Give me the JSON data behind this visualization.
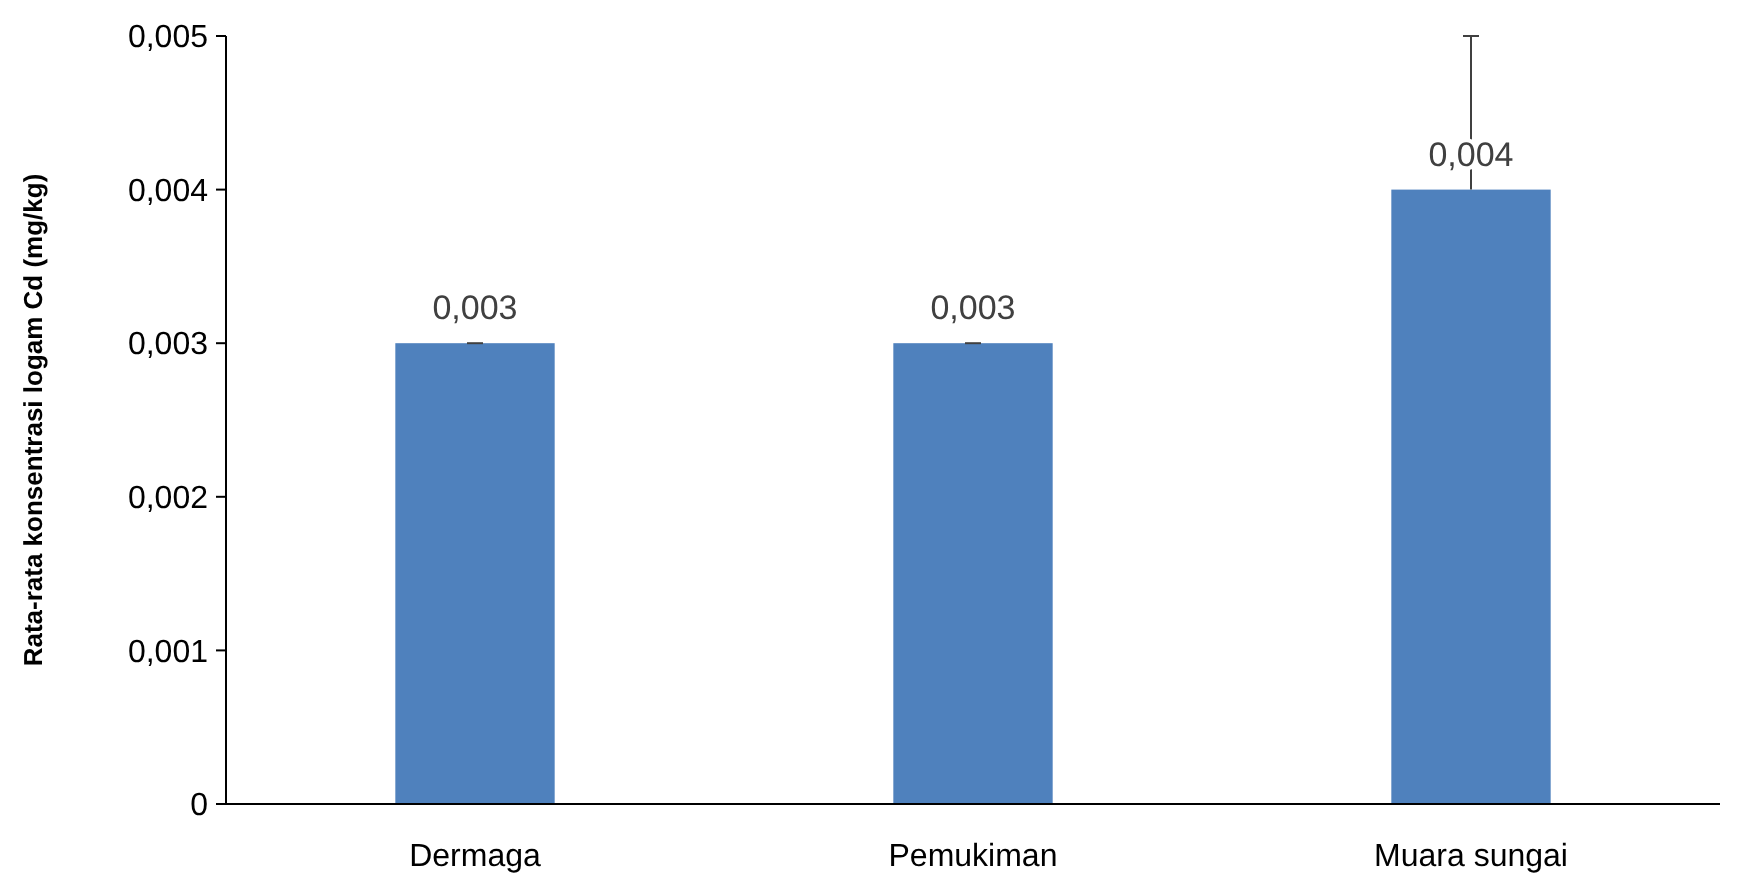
{
  "chart_data": {
    "type": "bar",
    "ylabel": "Rata-rata konsentrasi logam Cd  (mg/kg)",
    "categories": [
      "Dermaga",
      "Pemukiman",
      "Muara sungai"
    ],
    "values": [
      0.003,
      0.003,
      0.004
    ],
    "color": "#4f81bd",
    "errors": [
      [
        0.003,
        0.003
      ],
      [
        0.003,
        0.003
      ],
      [
        0.004,
        0.005
      ]
    ],
    "value_labels": [
      "0,003",
      "0,003",
      "0,004"
    ],
    "ylim": [
      0,
      0.005
    ],
    "yticks": [
      0,
      {
        "value": 0.001,
        "label": "0,001"
      },
      {
        "value": 0.002,
        "label": "0,002"
      },
      {
        "value": 0.003,
        "label": "0,003"
      },
      {
        "value": 0.004,
        "label": "0,004"
      },
      {
        "value": 0.005,
        "label": "0,005"
      }
    ],
    "grid": false
  }
}
